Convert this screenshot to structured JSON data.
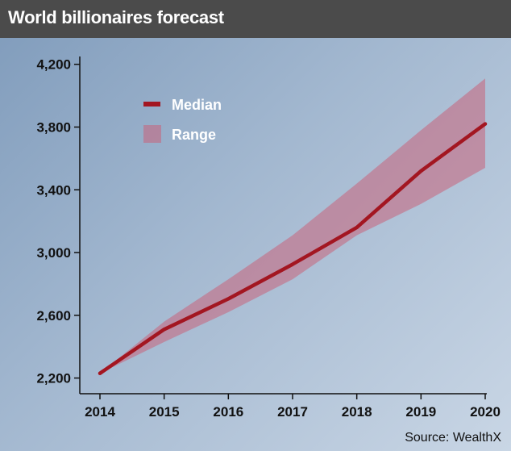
{
  "header": {
    "title": "World billionaires forecast"
  },
  "chart_data": {
    "type": "line",
    "x": [
      "2014",
      "2015",
      "2016",
      "2017",
      "2018",
      "2019",
      "2020"
    ],
    "ylim": [
      2100,
      4250
    ],
    "yticks": [
      2200,
      2600,
      3000,
      3400,
      3800,
      4200
    ],
    "ytick_labels": [
      "2,200",
      "2,600",
      "3,000",
      "3,400",
      "3,800",
      "4,200"
    ],
    "series": [
      {
        "name": "Median",
        "values": [
          2230,
          2510,
          2705,
          2925,
          3160,
          3520,
          3820
        ]
      }
    ],
    "range": {
      "name": "Range",
      "upper": [
        2230,
        2560,
        2830,
        3110,
        3440,
        3780,
        4110
      ],
      "lower": [
        2230,
        2430,
        2620,
        2830,
        3110,
        3310,
        3540
      ]
    },
    "legend_position": "top-left",
    "grid": false,
    "colors": {
      "median": "#a31621",
      "range": "#c9627a"
    },
    "source": "Source: WealthX"
  }
}
